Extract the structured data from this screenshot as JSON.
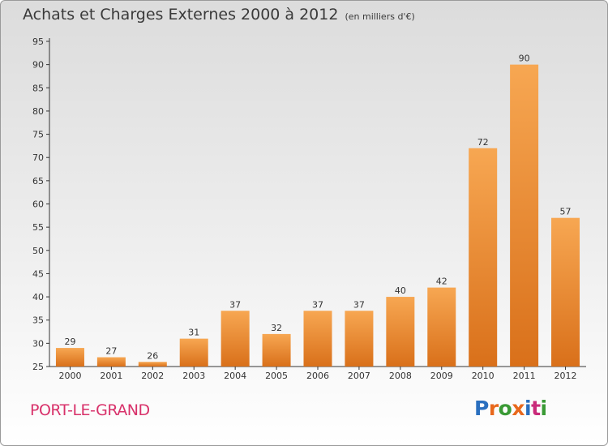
{
  "title": "Achats et Charges Externes 2000 à 2012",
  "subtitle": "(en milliers d'€)",
  "location": "PORT-LE-GRAND",
  "logo": {
    "text": "Proxiti",
    "colors": [
      "#2a6fbf",
      "#e8681c",
      "#3a9a35",
      "#e8681c",
      "#2a6fbf",
      "#c92a7a",
      "#3a9a35"
    ]
  },
  "colors": {
    "bar_light": "#f7a752",
    "bar_dark": "#d9701a",
    "location": "#d8316a"
  },
  "chart_data": {
    "type": "bar",
    "title": "Achats et Charges Externes 2000 à 2012",
    "subtitle": "(en milliers d'€)",
    "xlabel": "",
    "ylabel": "",
    "categories": [
      "2000",
      "2001",
      "2002",
      "2003",
      "2004",
      "2005",
      "2006",
      "2007",
      "2008",
      "2009",
      "2010",
      "2011",
      "2012"
    ],
    "values": [
      29,
      27,
      26,
      31,
      37,
      32,
      37,
      37,
      40,
      42,
      72,
      90,
      57
    ],
    "ylim": [
      25,
      95
    ],
    "yticks": [
      25,
      30,
      35,
      40,
      45,
      50,
      55,
      60,
      65,
      70,
      75,
      80,
      85,
      90,
      95
    ],
    "grid": false,
    "data_labels": true
  }
}
